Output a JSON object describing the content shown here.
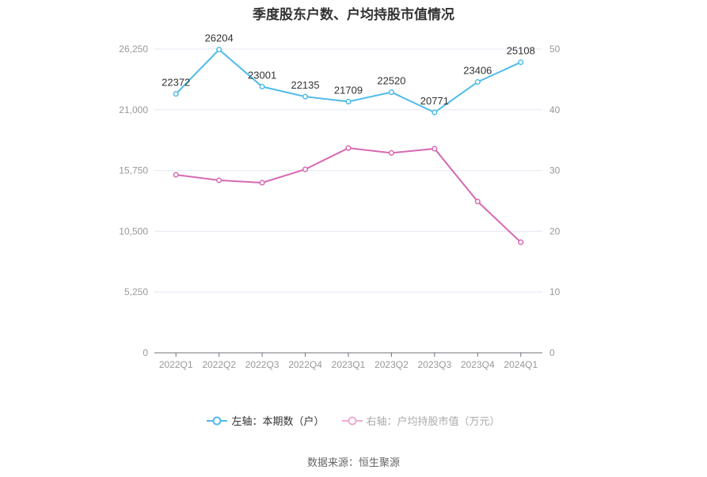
{
  "title": "季度股东户数、户均持股市值情况",
  "source": "数据来源：恒生聚源",
  "colors": {
    "left_series": "#4fbbea",
    "right_series": "#d669b2",
    "grid": "#e3e8f2",
    "axis_text": "#999999"
  },
  "legend": {
    "left": "左轴：本期数（户）",
    "right": "右轴：户均持股市值（万元）"
  },
  "chart_data": {
    "type": "line",
    "title": "季度股东户数、户均持股市值情况",
    "categories": [
      "2022Q1",
      "2022Q2",
      "2022Q3",
      "2022Q4",
      "2023Q1",
      "2023Q2",
      "2023Q3",
      "2023Q4",
      "2024Q1"
    ],
    "series": [
      {
        "name": "左轴：本期数（户）",
        "axis": "left",
        "values": [
          22372,
          26204,
          23001,
          22135,
          21709,
          22520,
          20771,
          23406,
          25108
        ],
        "labels_shown": true
      },
      {
        "name": "右轴：户均持股市值（万元）",
        "axis": "right",
        "values": [
          29.3,
          28.4,
          28.0,
          30.2,
          33.7,
          32.9,
          33.6,
          24.9,
          18.2
        ],
        "labels_shown": false
      }
    ],
    "left_axis": {
      "ticks": [
        "0",
        "5,250",
        "10,500",
        "15,750",
        "21,000",
        "26,250"
      ],
      "ylim": [
        0,
        26250
      ]
    },
    "right_axis": {
      "ticks": [
        "0",
        "10",
        "20",
        "30",
        "40",
        "50"
      ],
      "ylim": [
        0,
        50
      ]
    },
    "grid": true,
    "legend_position": "bottom"
  }
}
